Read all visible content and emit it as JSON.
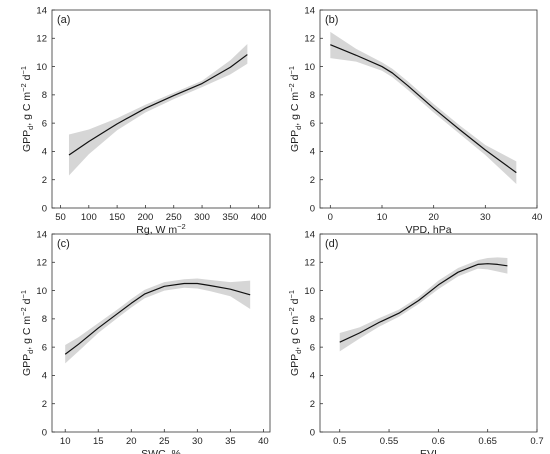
{
  "chart_data": [
    {
      "type": "line",
      "panel_label": "(a)",
      "xlabel": "Rg, W m",
      "xlabel_sup": "−2",
      "ylabel": "GPP",
      "ylabel_sub": "d",
      "ylabel_unit": ", g C m",
      "ylabel_sup1": "−2",
      "ylabel_mid": " d",
      "ylabel_sup2": "−1",
      "xlim": [
        35,
        420
      ],
      "ylim": [
        0,
        14
      ],
      "x_ticks": [
        50,
        100,
        150,
        200,
        250,
        300,
        350,
        400
      ],
      "y_ticks": [
        0,
        2,
        4,
        6,
        8,
        10,
        12,
        14
      ],
      "series": [
        {
          "values_x": [
            65,
            100,
            150,
            200,
            250,
            300,
            350,
            380
          ],
          "values_y": [
            3.75,
            4.7,
            5.95,
            7.05,
            7.95,
            8.8,
            9.95,
            10.85
          ],
          "band_upper": [
            5.2,
            5.55,
            6.35,
            7.3,
            8.15,
            9.0,
            10.45,
            11.6
          ],
          "band_lower": [
            2.3,
            3.8,
            5.5,
            6.75,
            7.7,
            8.55,
            9.45,
            10.2
          ]
        }
      ]
    },
    {
      "type": "line",
      "panel_label": "(b)",
      "xlabel": "VPD, hPa",
      "ylabel": "GPP",
      "ylabel_sub": "d",
      "ylabel_unit": ", g C m",
      "ylabel_sup1": "−2",
      "ylabel_mid": " d",
      "ylabel_sup2": "−1",
      "xlim": [
        -2,
        40
      ],
      "ylim": [
        0,
        14
      ],
      "x_ticks": [
        0,
        10,
        20,
        30,
        40
      ],
      "y_ticks": [
        0,
        2,
        4,
        6,
        8,
        10,
        12,
        14
      ],
      "series": [
        {
          "values_x": [
            0,
            5,
            10,
            12,
            15,
            20,
            25,
            30,
            36
          ],
          "values_y": [
            11.55,
            10.8,
            10.0,
            9.55,
            8.65,
            7.05,
            5.55,
            4.1,
            2.5
          ],
          "band_upper": [
            12.45,
            11.25,
            10.3,
            9.85,
            8.95,
            7.35,
            5.85,
            4.45,
            3.3
          ],
          "band_lower": [
            10.6,
            10.35,
            9.7,
            9.25,
            8.35,
            6.75,
            5.25,
            3.75,
            1.7
          ]
        }
      ]
    },
    {
      "type": "line",
      "panel_label": "(c)",
      "xlabel": "SWC, %",
      "ylabel": "GPP",
      "ylabel_sub": "d",
      "ylabel_unit": ", g C m",
      "ylabel_sup1": "−2",
      "ylabel_mid": " d",
      "ylabel_sup2": "−1",
      "xlim": [
        8,
        41
      ],
      "ylim": [
        0,
        14
      ],
      "x_ticks": [
        10,
        15,
        20,
        25,
        30,
        35,
        40
      ],
      "y_ticks": [
        0,
        2,
        4,
        6,
        8,
        10,
        12,
        14
      ],
      "series": [
        {
          "values_x": [
            10,
            12,
            15,
            18,
            20,
            22,
            25,
            28,
            30,
            32,
            35,
            38
          ],
          "values_y": [
            5.5,
            6.2,
            7.35,
            8.4,
            9.1,
            9.75,
            10.3,
            10.5,
            10.5,
            10.35,
            10.1,
            9.7
          ],
          "band_upper": [
            6.15,
            6.7,
            7.7,
            8.7,
            9.4,
            10.05,
            10.6,
            10.8,
            10.85,
            10.75,
            10.6,
            10.7
          ],
          "band_lower": [
            4.85,
            5.7,
            7.0,
            8.1,
            8.8,
            9.45,
            10.0,
            10.2,
            10.15,
            9.95,
            9.6,
            8.7
          ]
        }
      ]
    },
    {
      "type": "line",
      "panel_label": "(d)",
      "xlabel": "EVI",
      "ylabel": "GPP",
      "ylabel_sub": "d",
      "ylabel_unit": ", g C m",
      "ylabel_sup1": "−2",
      "ylabel_mid": " d",
      "ylabel_sup2": "−1",
      "xlim": [
        0.48,
        0.7
      ],
      "ylim": [
        0,
        14
      ],
      "x_ticks": [
        0.5,
        0.55,
        0.6,
        0.65,
        0.7
      ],
      "x_tick_labels": [
        "0.5",
        "0.55",
        "0.6",
        "0.65",
        "0.7"
      ],
      "y_ticks": [
        0,
        2,
        4,
        6,
        8,
        10,
        12,
        14
      ],
      "series": [
        {
          "values_x": [
            0.5,
            0.52,
            0.54,
            0.56,
            0.58,
            0.6,
            0.62,
            0.64,
            0.65,
            0.66,
            0.67
          ],
          "values_y": [
            6.35,
            7.0,
            7.75,
            8.4,
            9.3,
            10.4,
            11.3,
            11.85,
            11.9,
            11.85,
            11.75
          ],
          "band_upper": [
            7.0,
            7.4,
            8.05,
            8.65,
            9.55,
            10.7,
            11.6,
            12.15,
            12.3,
            12.35,
            12.3
          ],
          "band_lower": [
            5.7,
            6.6,
            7.45,
            8.15,
            9.05,
            10.1,
            11.0,
            11.55,
            11.5,
            11.35,
            11.2
          ]
        }
      ]
    }
  ]
}
